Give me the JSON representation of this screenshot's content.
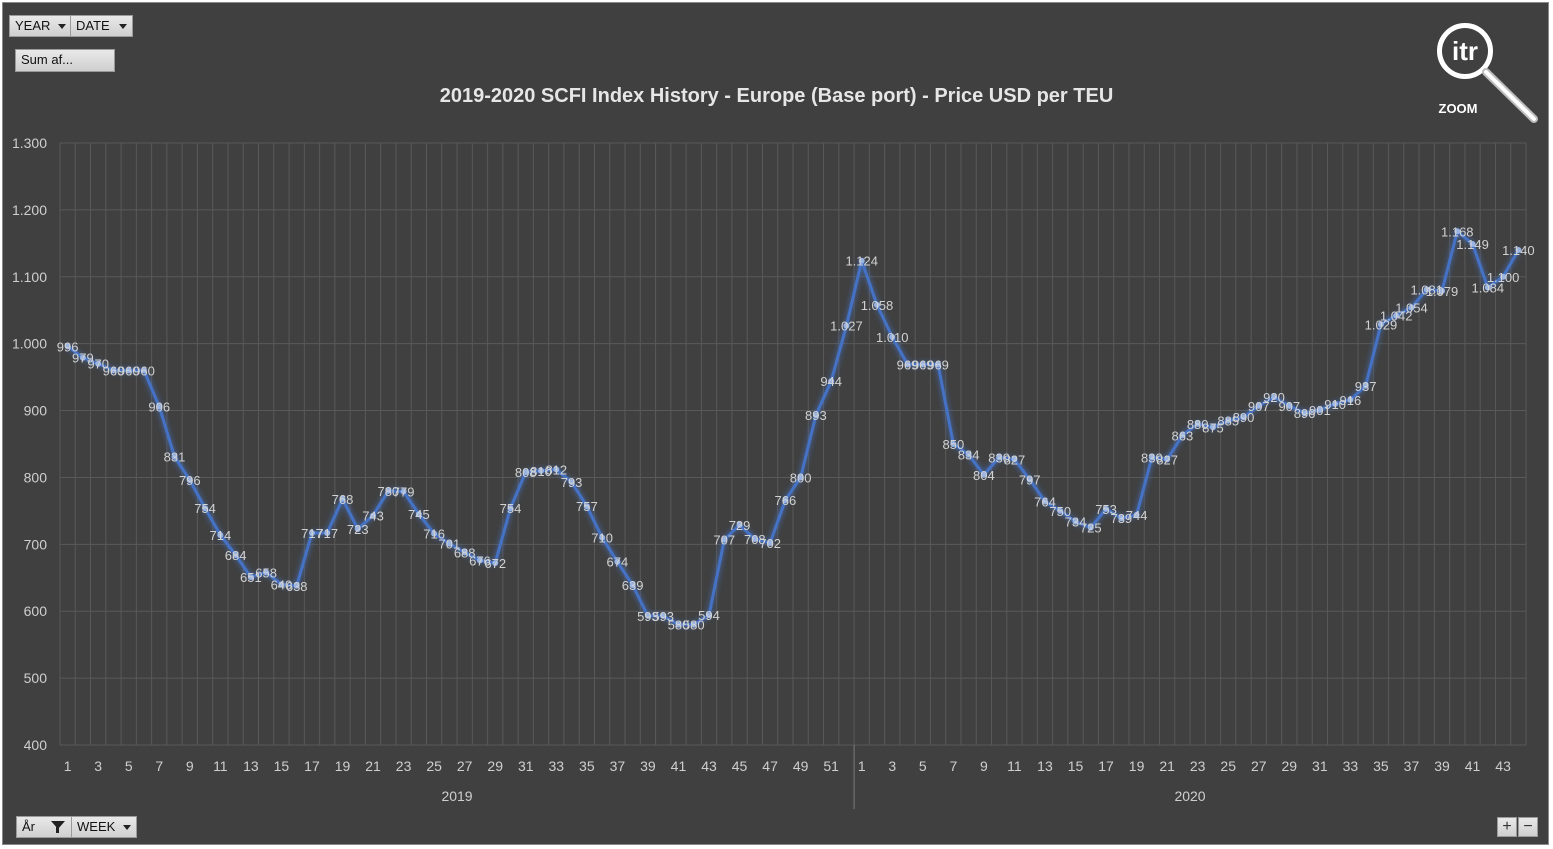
{
  "controls": {
    "year_label": "YEAR",
    "date_label": "DATE",
    "sum_label": "Sum af...",
    "ar_label": "År",
    "week_label": "WEEK",
    "zoom_in": "+",
    "zoom_out": "−"
  },
  "logo": {
    "mark": "itr",
    "caption": "ZOOM"
  },
  "colors": {
    "background": "#404040",
    "line": "#4472c4",
    "grid": "#595959"
  },
  "chart_data": {
    "type": "line",
    "title": "2019-2020 SCFI Index History - Europe (Base port) - Price USD per TEU",
    "xlabel": "",
    "ylabel": "",
    "ylim": [
      400,
      1300
    ],
    "y_ticks": [
      {
        "value": 400,
        "label": "400"
      },
      {
        "value": 500,
        "label": "500"
      },
      {
        "value": 600,
        "label": "600"
      },
      {
        "value": 700,
        "label": "700"
      },
      {
        "value": 800,
        "label": "800"
      },
      {
        "value": 900,
        "label": "900"
      },
      {
        "value": 1000,
        "label": "1.000"
      },
      {
        "value": 1100,
        "label": "1.100"
      },
      {
        "value": 1200,
        "label": "1.200"
      },
      {
        "value": 1300,
        "label": "1.300"
      }
    ],
    "groups": [
      {
        "label": "2019",
        "weeks": [
          1,
          2,
          3,
          4,
          5,
          6,
          7,
          8,
          9,
          10,
          11,
          12,
          13,
          14,
          15,
          16,
          17,
          18,
          19,
          20,
          21,
          22,
          23,
          24,
          25,
          26,
          27,
          28,
          29,
          30,
          31,
          32,
          33,
          34,
          35,
          36,
          37,
          38,
          39,
          40,
          41,
          42,
          43,
          44,
          45,
          46,
          47,
          48,
          49,
          50,
          51,
          52
        ]
      },
      {
        "label": "2020",
        "weeks": [
          1,
          2,
          3,
          4,
          5,
          6,
          7,
          8,
          9,
          10,
          11,
          12,
          13,
          14,
          15,
          16,
          17,
          18,
          19,
          20,
          21,
          22,
          23,
          24,
          25,
          26,
          27,
          28,
          29,
          30,
          31,
          32,
          33,
          34,
          35,
          36,
          37,
          38,
          39,
          40,
          41,
          42,
          43,
          44
        ]
      }
    ],
    "series": [
      {
        "values": [
          996,
          979,
          970,
          960,
          960,
          960,
          906,
          831,
          796,
          754,
          714,
          684,
          651,
          658,
          640,
          638,
          717,
          717,
          768,
          723,
          743,
          780,
          779,
          745,
          716,
          701,
          688,
          676,
          672,
          754,
          808,
          810,
          812,
          793,
          757,
          710,
          674,
          639,
          593,
          593,
          580,
          580,
          594,
          707,
          729,
          708,
          702,
          766,
          800,
          893,
          944,
          1027,
          1124,
          1058,
          1010,
          969,
          969,
          969,
          850,
          834,
          804,
          830,
          827,
          797,
          764,
          750,
          734,
          725,
          753,
          739,
          744,
          830,
          827,
          863,
          880,
          875,
          885,
          890,
          907,
          920,
          907,
          896,
          901,
          910,
          916,
          937,
          1029,
          1042,
          1054,
          1081,
          1079,
          1168,
          1149,
          1084,
          1100,
          1140
        ],
        "labels": [
          "996",
          "979",
          "970",
          "960",
          "960",
          "960",
          "906",
          "831",
          "796",
          "754",
          "714",
          "684",
          "651",
          "658",
          "640",
          "638",
          "717",
          "717",
          "768",
          "723",
          "743",
          "780",
          "779",
          "745",
          "716",
          "701",
          "688",
          "676",
          "672",
          "754",
          "808",
          "810",
          "812",
          "793",
          "757",
          "710",
          "674",
          "639",
          "593",
          "593",
          "580",
          "580",
          "594",
          "707",
          "729",
          "708",
          "702",
          "766",
          "800",
          "893",
          "944",
          "1.027",
          "1.124",
          "1.058",
          "1.010",
          "969",
          "969",
          "969",
          "850",
          "834",
          "804",
          "830",
          "827",
          "797",
          "764",
          "750",
          "734",
          "725",
          "753",
          "739",
          "744",
          "830",
          "827",
          "863",
          "880",
          "875",
          "885",
          "890",
          "907",
          "920",
          "907",
          "896",
          "901",
          "910",
          "916",
          "937",
          "1.029",
          "1.042",
          "1.054",
          "1.081",
          "1.079",
          "1.168",
          "1.149",
          "1.084",
          "1.100",
          "1.140"
        ]
      }
    ],
    "grid": true,
    "legend": "none"
  }
}
